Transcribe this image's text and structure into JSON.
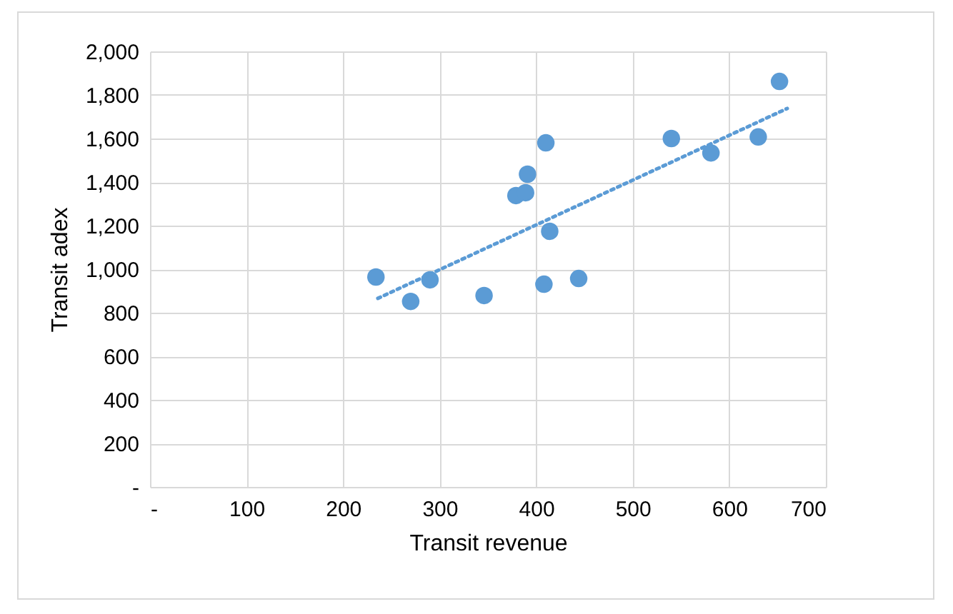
{
  "chart_data": {
    "type": "scatter",
    "xlabel": "Transit revenue",
    "ylabel": "Transit adex",
    "xlim": [
      0,
      700
    ],
    "xticks": [
      {
        "value": 0,
        "label": "-"
      },
      100,
      200,
      300,
      400,
      500,
      600,
      700
    ],
    "ylim": [
      0,
      2000
    ],
    "yticks": [
      {
        "value": 0,
        "label": "-"
      },
      200,
      400,
      600,
      800,
      {
        "value": 1000,
        "label": "1,000"
      },
      {
        "value": 1200,
        "label": "1,200"
      },
      {
        "value": 1400,
        "label": "1,400"
      },
      {
        "value": 1600,
        "label": "1,600"
      },
      {
        "value": 1800,
        "label": "1,800"
      },
      {
        "value": 2000,
        "label": "2,000"
      }
    ],
    "grid": true,
    "series": [
      {
        "marker": "circle",
        "color": "#5b9bd5",
        "x": [
          234,
          270,
          290,
          346,
          408,
          444,
          379,
          389,
          391,
          410,
          414,
          540,
          581,
          630,
          652
        ],
        "values": [
          964,
          852,
          951,
          879,
          931,
          957,
          1338,
          1351,
          1436,
          1580,
          1174,
          1600,
          1534,
          1607,
          1862
        ]
      },
      {
        "type": "line",
        "color": "#5b9bd5",
        "line_style": "dotted",
        "x": [
          236,
          660
        ],
        "values": [
          866,
          1738
        ]
      }
    ]
  }
}
